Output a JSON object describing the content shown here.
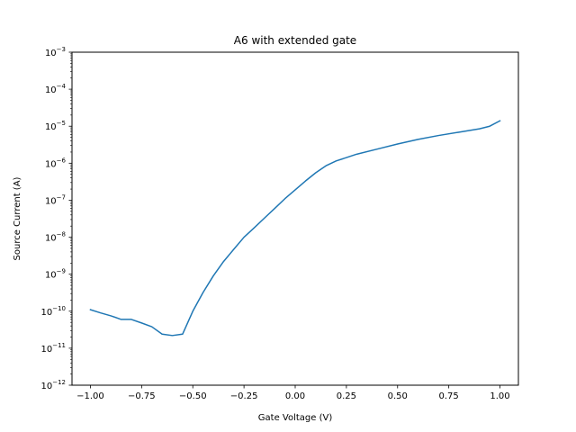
{
  "chart_data": {
    "type": "line",
    "title": "A6 with extended gate",
    "xlabel": "Gate Voltage (V)",
    "ylabel": "Source Current (A)",
    "xlim": [
      -1.09,
      1.09
    ],
    "ylim": [
      1e-12,
      0.001
    ],
    "yscale": "log",
    "grid": false,
    "legend": "none",
    "xticks": [
      {
        "value": -1.0,
        "label": "−1.00"
      },
      {
        "value": -0.75,
        "label": "−0.75"
      },
      {
        "value": -0.5,
        "label": "−0.50"
      },
      {
        "value": -0.25,
        "label": "−0.25"
      },
      {
        "value": 0.0,
        "label": "0.00"
      },
      {
        "value": 0.25,
        "label": "0.25"
      },
      {
        "value": 0.5,
        "label": "0.50"
      },
      {
        "value": 0.75,
        "label": "0.75"
      },
      {
        "value": 1.0,
        "label": "1.00"
      }
    ],
    "yticks": [
      {
        "value": 1e-12,
        "base": "10",
        "exp": "−12"
      },
      {
        "value": 1e-11,
        "base": "10",
        "exp": "−11"
      },
      {
        "value": 1e-10,
        "base": "10",
        "exp": "−10"
      },
      {
        "value": 1e-09,
        "base": "10",
        "exp": "−9"
      },
      {
        "value": 1e-08,
        "base": "10",
        "exp": "−8"
      },
      {
        "value": 1e-07,
        "base": "10",
        "exp": "−7"
      },
      {
        "value": 1e-06,
        "base": "10",
        "exp": "−6"
      },
      {
        "value": 1e-05,
        "base": "10",
        "exp": "−5"
      },
      {
        "value": 0.0001,
        "base": "10",
        "exp": "−4"
      },
      {
        "value": 0.001,
        "base": "10",
        "exp": "−3"
      }
    ],
    "color": "#1f77b4",
    "series": [
      {
        "x": [
          -1.0,
          -0.95,
          -0.9,
          -0.85,
          -0.8,
          -0.75,
          -0.7,
          -0.65,
          -0.6,
          -0.55,
          -0.5,
          -0.45,
          -0.4,
          -0.35,
          -0.3,
          -0.25,
          -0.2,
          -0.15,
          -0.1,
          -0.05,
          0.0,
          0.05,
          0.1,
          0.15,
          0.2,
          0.3,
          0.4,
          0.5,
          0.6,
          0.7,
          0.8,
          0.9,
          0.95,
          1.0
        ],
        "y": [
          1.1e-10,
          9e-11,
          7.5e-11,
          6e-11,
          6e-11,
          4.8e-11,
          3.8e-11,
          2.4e-11,
          2.2e-11,
          2.4e-11,
          1e-10,
          3.2e-10,
          9e-10,
          2.2e-09,
          4.7e-09,
          1e-08,
          1.8e-08,
          3.3e-08,
          6e-08,
          1.1e-07,
          1.9e-07,
          3.3e-07,
          5.5e-07,
          8.5e-07,
          1.15e-06,
          1.75e-06,
          2.4e-06,
          3.3e-06,
          4.4e-06,
          5.6e-06,
          6.9e-06,
          8.5e-06,
          1e-05,
          1.4e-05
        ]
      }
    ]
  }
}
